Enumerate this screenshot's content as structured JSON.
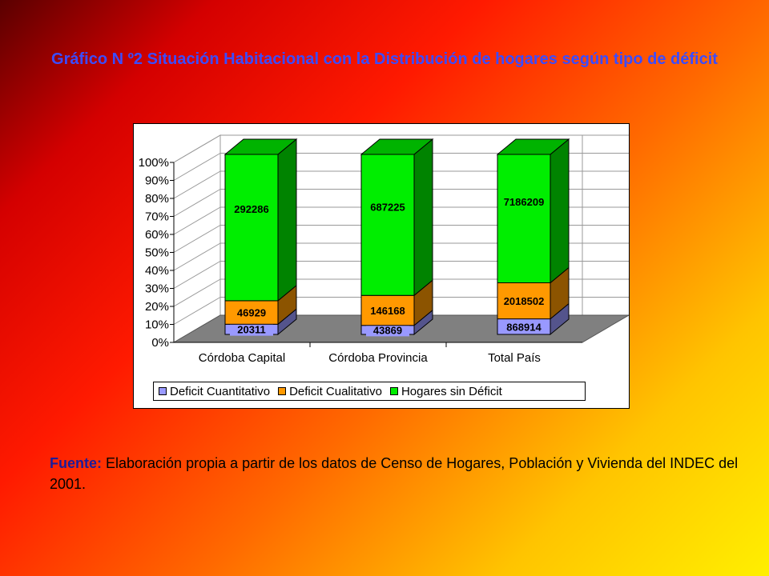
{
  "title": "Gráfico N º2 Situación Habitacional con la Distribución de hogares según tipo de déficit",
  "source": {
    "label": "Fuente:",
    "text": " Elaboración propia a partir de los datos de Censo de Hogares, Población y Vivienda del INDEC del 2001."
  },
  "chart_data": {
    "type": "bar",
    "stacked": "percent",
    "three_d": true,
    "categories": [
      "Córdoba Capital",
      "Córdoba Provincia",
      "Total País"
    ],
    "series": [
      {
        "name": "Deficit Cuantitativo",
        "color": "#9999ff",
        "values": [
          20311,
          43869,
          868914
        ]
      },
      {
        "name": "Deficit Cualitativo",
        "color": "#ff9900",
        "values": [
          46929,
          146168,
          2018502
        ]
      },
      {
        "name": "Hogares sin Déficit",
        "color": "#00ee00",
        "values": [
          292286,
          687225,
          7186209
        ]
      }
    ],
    "y_ticks": [
      "0%",
      "10%",
      "20%",
      "30%",
      "40%",
      "50%",
      "60%",
      "70%",
      "80%",
      "90%",
      "100%"
    ],
    "ylim": [
      0,
      100
    ],
    "grid": true,
    "legend": "bottom"
  }
}
